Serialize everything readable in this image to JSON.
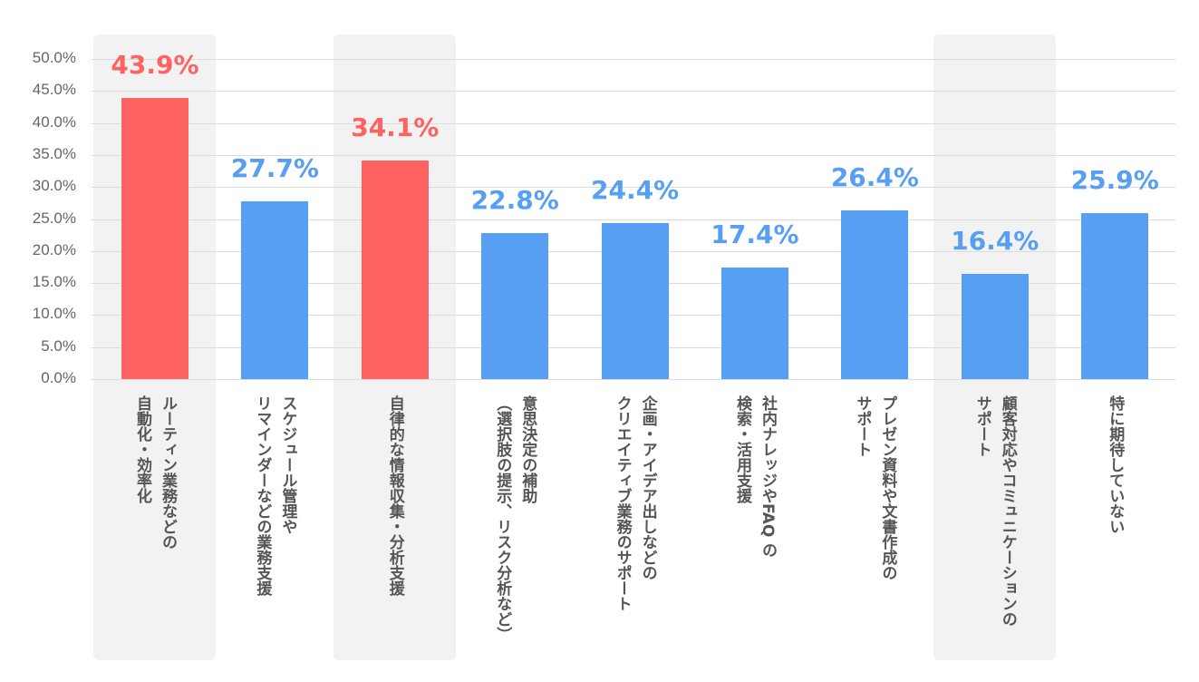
{
  "chart_data": {
    "type": "bar",
    "title": "",
    "xlabel": "",
    "ylabel": "",
    "ylim": [
      0,
      50
    ],
    "grid": true,
    "y_ticks": [
      0,
      5,
      10,
      15,
      20,
      25,
      30,
      35,
      40,
      45,
      50
    ],
    "y_tick_labels": [
      "0.0%",
      "5.0%",
      "10.0%",
      "15.0%",
      "20.0%",
      "25.0%",
      "30.0%",
      "35.0%",
      "40.0%",
      "45.0%",
      "50.0%"
    ],
    "categories": [
      [
        "ルーティン業務などの",
        "自動化・効率化"
      ],
      [
        "スケジュール管理や",
        "リマインダーなどの業務支援"
      ],
      [
        "自律的な情報収集・分析支援"
      ],
      [
        "意思決定の補助",
        "（選択肢の提示、リスク分析など）"
      ],
      [
        "企画・アイデア出しなどの",
        "クリエイティブ業務のサポート"
      ],
      [
        "社内ナレッジやFAQ の",
        "検索・活用支援"
      ],
      [
        "プレゼン資料や文書作成の",
        "サポート"
      ],
      [
        "顧客対応やコミュニケーションの",
        "サポート"
      ],
      [
        "特に期待していない"
      ]
    ],
    "values": [
      43.9,
      27.7,
      34.1,
      22.8,
      24.4,
      17.4,
      26.4,
      16.4,
      25.9
    ],
    "value_labels": [
      "43.9%",
      "27.7%",
      "34.1%",
      "22.8%",
      "24.4%",
      "17.4%",
      "26.4%",
      "16.4%",
      "25.9%"
    ],
    "highlighted": [
      true,
      false,
      true,
      false,
      false,
      false,
      false,
      false,
      false
    ],
    "shaded_categories": [
      0,
      2,
      7
    ],
    "colors": {
      "highlight": "#ff6361",
      "default": "#569ff2",
      "label_highlight": "#ff6361",
      "label_default": "#569ff2"
    }
  }
}
